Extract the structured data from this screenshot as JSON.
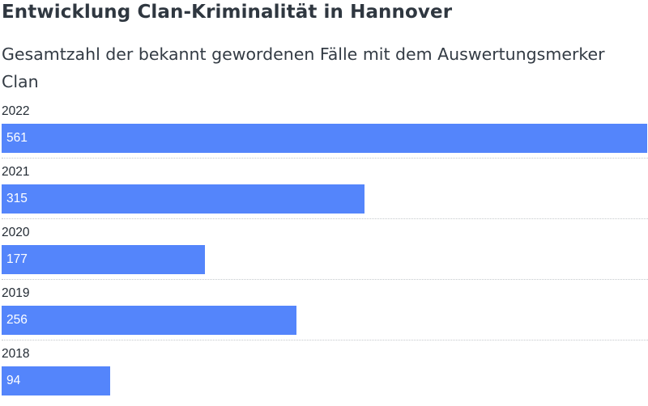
{
  "header": {
    "title": "Entwicklung Clan-Kriminalität in Hannover",
    "subtitle": "Gesamtzahl der bekannt gewordenen Fälle mit dem Auswertungsmerker Clan"
  },
  "colors": {
    "bar": "#5485fb",
    "value_text": "#ffffff",
    "divider": "#c4c8cc"
  },
  "chart_data": {
    "type": "bar",
    "orientation": "horizontal",
    "title": "Entwicklung Clan-Kriminalität in Hannover",
    "subtitle": "Gesamtzahl der bekannt gewordenen Fälle mit dem Auswertungsmerker Clan",
    "categories": [
      "2022",
      "2021",
      "2020",
      "2019",
      "2018"
    ],
    "values": [
      561,
      315,
      177,
      256,
      94
    ],
    "xlim": [
      0,
      561
    ],
    "value_labels": "inside-bar-left",
    "grid": false
  }
}
